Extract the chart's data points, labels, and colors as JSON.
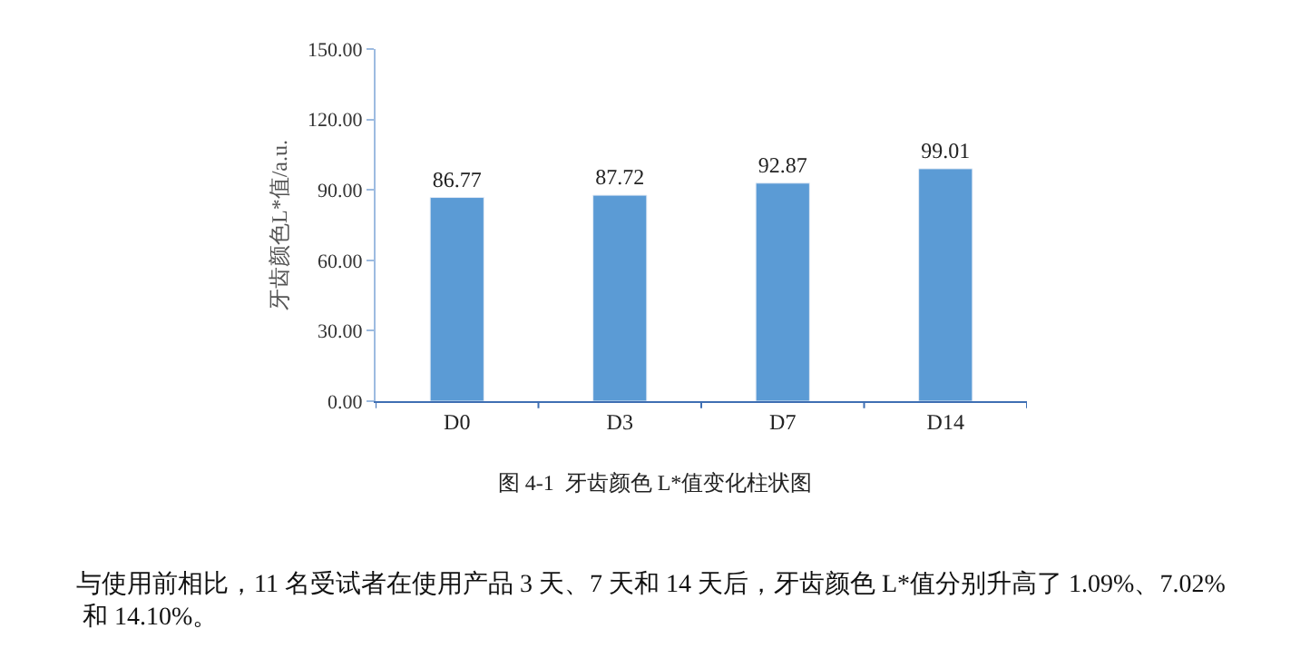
{
  "chart_data": {
    "type": "bar",
    "title": "图 4-1  牙齿颜色 L*值变化柱状图",
    "ylabel": "牙齿颜色L*值/a.u.",
    "categories": [
      "D0",
      "D3",
      "D7",
      "D14"
    ],
    "values": [
      86.77,
      87.72,
      92.87,
      99.01
    ],
    "color": "#5b9bd5",
    "data_labels": true,
    "ylim": [
      0,
      150
    ],
    "yticks": [
      {
        "value": 0,
        "label": "0.00"
      },
      {
        "value": 30,
        "label": "30.00"
      },
      {
        "value": 60,
        "label": "60.00"
      },
      {
        "value": 90,
        "label": "90.00"
      },
      {
        "value": 120,
        "label": "120.00"
      },
      {
        "value": 150,
        "label": "150.00"
      }
    ],
    "annotations": [
      "与使用前相比，11 名受试者在使用产品 3 天、7 天和 14 天后，牙齿颜色 L*值分别升高了 1.09%、7.02% 和 14.10%。"
    ]
  }
}
